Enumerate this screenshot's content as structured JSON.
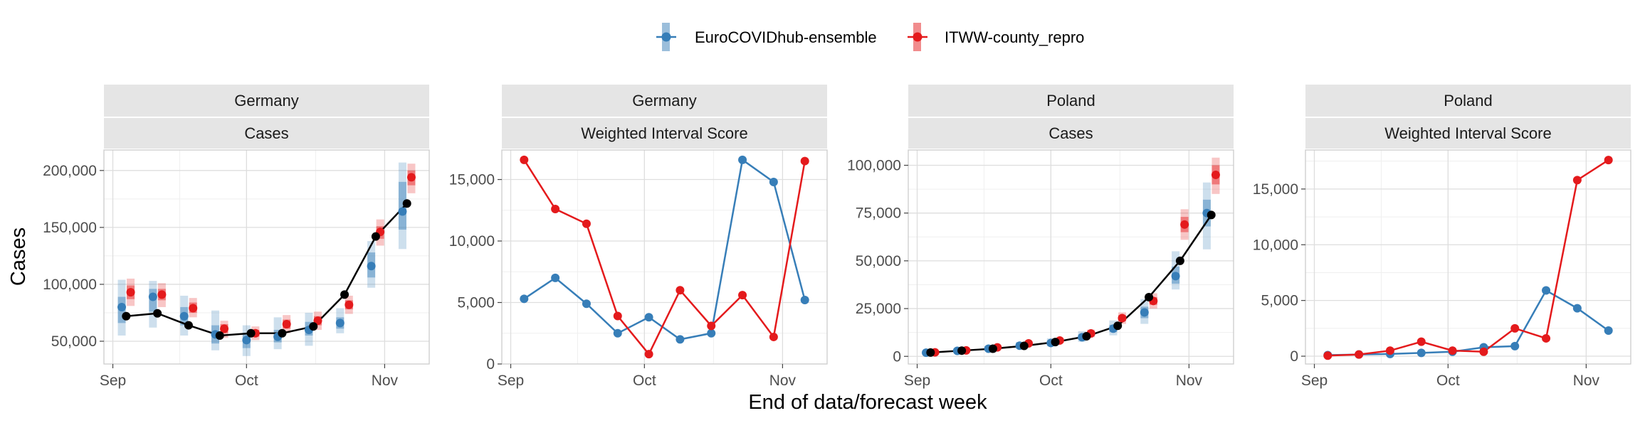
{
  "legend": {
    "items": [
      {
        "label": "EuroCOVIDhub-ensemble",
        "color": "#377eb8"
      },
      {
        "label": "ITWW-county_repro",
        "color": "#e41a1c"
      }
    ]
  },
  "axes": {
    "xlabel": "End of data/forecast week",
    "ylabel": "Cases"
  },
  "chart_data": [
    {
      "type": "line",
      "strip_top": "Germany",
      "strip_bottom": "Cases",
      "x_ticks": [
        "Sep",
        "Oct",
        "Nov"
      ],
      "y_ticks": [
        "50,000",
        "100,000",
        "150,000",
        "200,000"
      ],
      "y_tick_values": [
        50000,
        100000,
        150000,
        200000
      ],
      "x_tick_positions": [
        0,
        30,
        61
      ],
      "xlim": [
        -2,
        71
      ],
      "ylim": [
        30000,
        218000
      ],
      "observed": {
        "x": [
          3,
          10,
          17,
          24,
          31,
          38,
          45,
          52,
          59,
          66
        ],
        "values": [
          72000,
          74500,
          64000,
          55000,
          57000,
          57000,
          63000,
          91000,
          142000,
          171000
        ]
      },
      "series": [
        {
          "name": "EuroCOVIDhub-ensemble",
          "x": [
            2,
            9,
            16,
            23,
            30,
            37,
            44,
            51,
            58,
            65
          ],
          "values": [
            80000,
            89000,
            72000,
            56000,
            51000,
            54000,
            60000,
            66000,
            116000,
            164000
          ],
          "interval_50": [
            [
              66000,
              89000
            ],
            [
              76000,
              96000
            ],
            [
              64000,
              80000
            ],
            [
              48000,
              64000
            ],
            [
              44000,
              57000
            ],
            [
              49000,
              60000
            ],
            [
              55000,
              67000
            ],
            [
              61000,
              71000
            ],
            [
              106000,
              128000
            ],
            [
              148000,
              190000
            ]
          ],
          "interval_90": [
            [
              55000,
              104000
            ],
            [
              62000,
              103000
            ],
            [
              55000,
              90000
            ],
            [
              42000,
              77000
            ],
            [
              37000,
              64000
            ],
            [
              43000,
              71000
            ],
            [
              46000,
              75000
            ],
            [
              57000,
              79000
            ],
            [
              97000,
              138000
            ],
            [
              131000,
              207000
            ]
          ]
        },
        {
          "name": "ITWW-county_repro",
          "x": [
            4,
            11,
            18,
            25,
            32,
            39,
            46,
            53,
            60,
            67
          ],
          "values": [
            93000,
            91000,
            79000,
            61000,
            57000,
            65000,
            68000,
            82000,
            146000,
            194000
          ],
          "interval_50": [
            [
              87000,
              99000
            ],
            [
              86000,
              96000
            ],
            [
              75000,
              84000
            ],
            [
              57000,
              65000
            ],
            [
              54000,
              60000
            ],
            [
              61000,
              69000
            ],
            [
              64000,
              72000
            ],
            [
              78000,
              86000
            ],
            [
              140000,
              151000
            ],
            [
              187000,
              200000
            ]
          ],
          "interval_90": [
            [
              81000,
              105000
            ],
            [
              80000,
              101000
            ],
            [
              71000,
              88000
            ],
            [
              53000,
              68000
            ],
            [
              51000,
              63000
            ],
            [
              57000,
              73000
            ],
            [
              60000,
              76000
            ],
            [
              74000,
              90000
            ],
            [
              134000,
              157000
            ],
            [
              180000,
              206000
            ]
          ]
        }
      ]
    },
    {
      "type": "line",
      "strip_top": "Germany",
      "strip_bottom": "Weighted Interval Score",
      "x_ticks": [
        "Sep",
        "Oct",
        "Nov"
      ],
      "y_ticks": [
        "0",
        "5,000",
        "10,000",
        "15,000"
      ],
      "y_tick_values": [
        0,
        5000,
        10000,
        15000
      ],
      "x_tick_positions": [
        0,
        30,
        61
      ],
      "xlim": [
        -2,
        71
      ],
      "ylim": [
        0,
        17400
      ],
      "series": [
        {
          "name": "EuroCOVIDhub-ensemble",
          "x": [
            3,
            10,
            17,
            24,
            31,
            38,
            45,
            52,
            59,
            66
          ],
          "values": [
            5300,
            7000,
            4900,
            2500,
            3800,
            2000,
            2500,
            16600,
            14800,
            5200
          ]
        },
        {
          "name": "ITWW-county_repro",
          "x": [
            3,
            10,
            17,
            24,
            31,
            38,
            45,
            52,
            59,
            66
          ],
          "values": [
            16600,
            12600,
            11400,
            3900,
            800,
            6000,
            3100,
            5600,
            2200,
            16500
          ]
        }
      ]
    },
    {
      "type": "line",
      "strip_top": "Poland",
      "strip_bottom": "Cases",
      "x_ticks": [
        "Sep",
        "Oct",
        "Nov"
      ],
      "y_ticks": [
        "0",
        "25,000",
        "50,000",
        "75,000",
        "100,000"
      ],
      "y_tick_values": [
        0,
        25000,
        50000,
        75000,
        100000
      ],
      "x_tick_positions": [
        0,
        30,
        61
      ],
      "xlim": [
        -2,
        71
      ],
      "ylim": [
        -4000,
        108000
      ],
      "observed": {
        "x": [
          3,
          10,
          17,
          24,
          31,
          38,
          45,
          52,
          59,
          66
        ],
        "values": [
          2000,
          3000,
          4000,
          5500,
          7500,
          10500,
          16000,
          31000,
          50000,
          74000
        ]
      },
      "series": [
        {
          "name": "EuroCOVIDhub-ensemble",
          "x": [
            2,
            9,
            16,
            23,
            30,
            37,
            44,
            51,
            58,
            65
          ],
          "values": [
            1900,
            2900,
            4000,
            5600,
            7000,
            10000,
            14500,
            23000,
            42000,
            75000
          ],
          "interval_50": [
            [
              1500,
              2400
            ],
            [
              2400,
              3500
            ],
            [
              3300,
              4700
            ],
            [
              4700,
              6600
            ],
            [
              6000,
              8200
            ],
            [
              8700,
              11500
            ],
            [
              12800,
              16500
            ],
            [
              20000,
              26000
            ],
            [
              38000,
              47000
            ],
            [
              68000,
              82000
            ]
          ],
          "interval_90": [
            [
              1200,
              2800
            ],
            [
              2000,
              4000
            ],
            [
              2800,
              5400
            ],
            [
              4000,
              7500
            ],
            [
              5200,
              9400
            ],
            [
              7600,
              13200
            ],
            [
              11000,
              18800
            ],
            [
              17000,
              30000
            ],
            [
              35000,
              55000
            ],
            [
              56000,
              91000
            ]
          ]
        },
        {
          "name": "ITWW-county_repro",
          "x": [
            4,
            11,
            18,
            25,
            32,
            39,
            46,
            53,
            60,
            67
          ],
          "values": [
            2100,
            3100,
            4700,
            6800,
            8300,
            12000,
            20000,
            29000,
            69000,
            95000
          ],
          "interval_50": [
            [
              1800,
              2400
            ],
            [
              2800,
              3400
            ],
            [
              4200,
              5200
            ],
            [
              6200,
              7400
            ],
            [
              7600,
              9000
            ],
            [
              11000,
              13000
            ],
            [
              18500,
              21500
            ],
            [
              27000,
              31000
            ],
            [
              65000,
              73000
            ],
            [
              90000,
              100000
            ]
          ],
          "interval_90": [
            [
              1500,
              2700
            ],
            [
              2500,
              3700
            ],
            [
              3800,
              5600
            ],
            [
              5700,
              7900
            ],
            [
              7000,
              9600
            ],
            [
              10000,
              14000
            ],
            [
              17000,
              23000
            ],
            [
              25000,
              33000
            ],
            [
              61000,
              77000
            ],
            [
              85000,
              104000
            ]
          ]
        }
      ]
    },
    {
      "type": "line",
      "strip_top": "Poland",
      "strip_bottom": "Weighted Interval Score",
      "x_ticks": [
        "Sep",
        "Oct",
        "Nov"
      ],
      "y_ticks": [
        "0",
        "5,000",
        "10,000",
        "15,000"
      ],
      "y_tick_values": [
        0,
        5000,
        10000,
        15000
      ],
      "x_tick_positions": [
        0,
        30,
        61
      ],
      "xlim": [
        -2,
        71
      ],
      "ylim": [
        -700,
        18500
      ],
      "series": [
        {
          "name": "EuroCOVIDhub-ensemble",
          "x": [
            3,
            10,
            17,
            24,
            31,
            38,
            45,
            52,
            59,
            66
          ],
          "values": [
            100,
            150,
            200,
            300,
            400,
            800,
            900,
            5900,
            4300,
            2300
          ]
        },
        {
          "name": "ITWW-county_repro",
          "x": [
            3,
            10,
            17,
            24,
            31,
            38,
            45,
            52,
            59,
            66
          ],
          "values": [
            50,
            150,
            500,
            1300,
            500,
            400,
            2500,
            1600,
            15800,
            17600
          ]
        }
      ]
    }
  ]
}
